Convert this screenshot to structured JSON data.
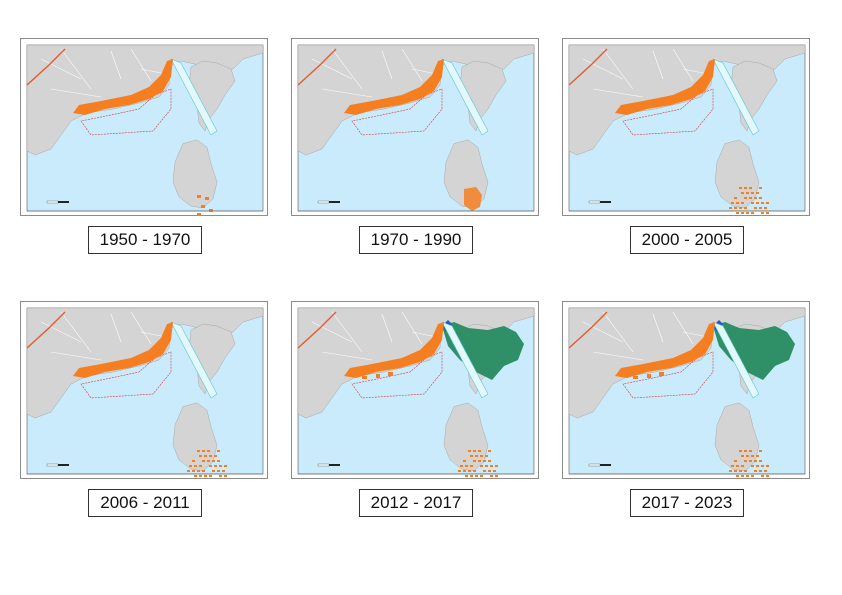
{
  "colors": {
    "sea": "#c9ebfb",
    "land": "#d4d4d4",
    "urban": "#f57f20",
    "green": "#2f8f66",
    "road": "#e45a2a",
    "boundary": "#d0384a"
  },
  "panels": [
    {
      "caption": "1950 - 1970",
      "island_fill": "sparse",
      "green_zone": false
    },
    {
      "caption": "1970 - 1990",
      "island_fill": "cluster",
      "green_zone": false
    },
    {
      "caption": "2000 - 2005",
      "island_fill": "dense",
      "green_zone": false
    },
    {
      "caption": "2006 - 2011",
      "island_fill": "dense",
      "green_zone": false
    },
    {
      "caption": "2012 - 2017",
      "island_fill": "dense",
      "green_zone": true
    },
    {
      "caption": "2017 - 2023",
      "island_fill": "dense",
      "green_zone": true
    }
  ]
}
